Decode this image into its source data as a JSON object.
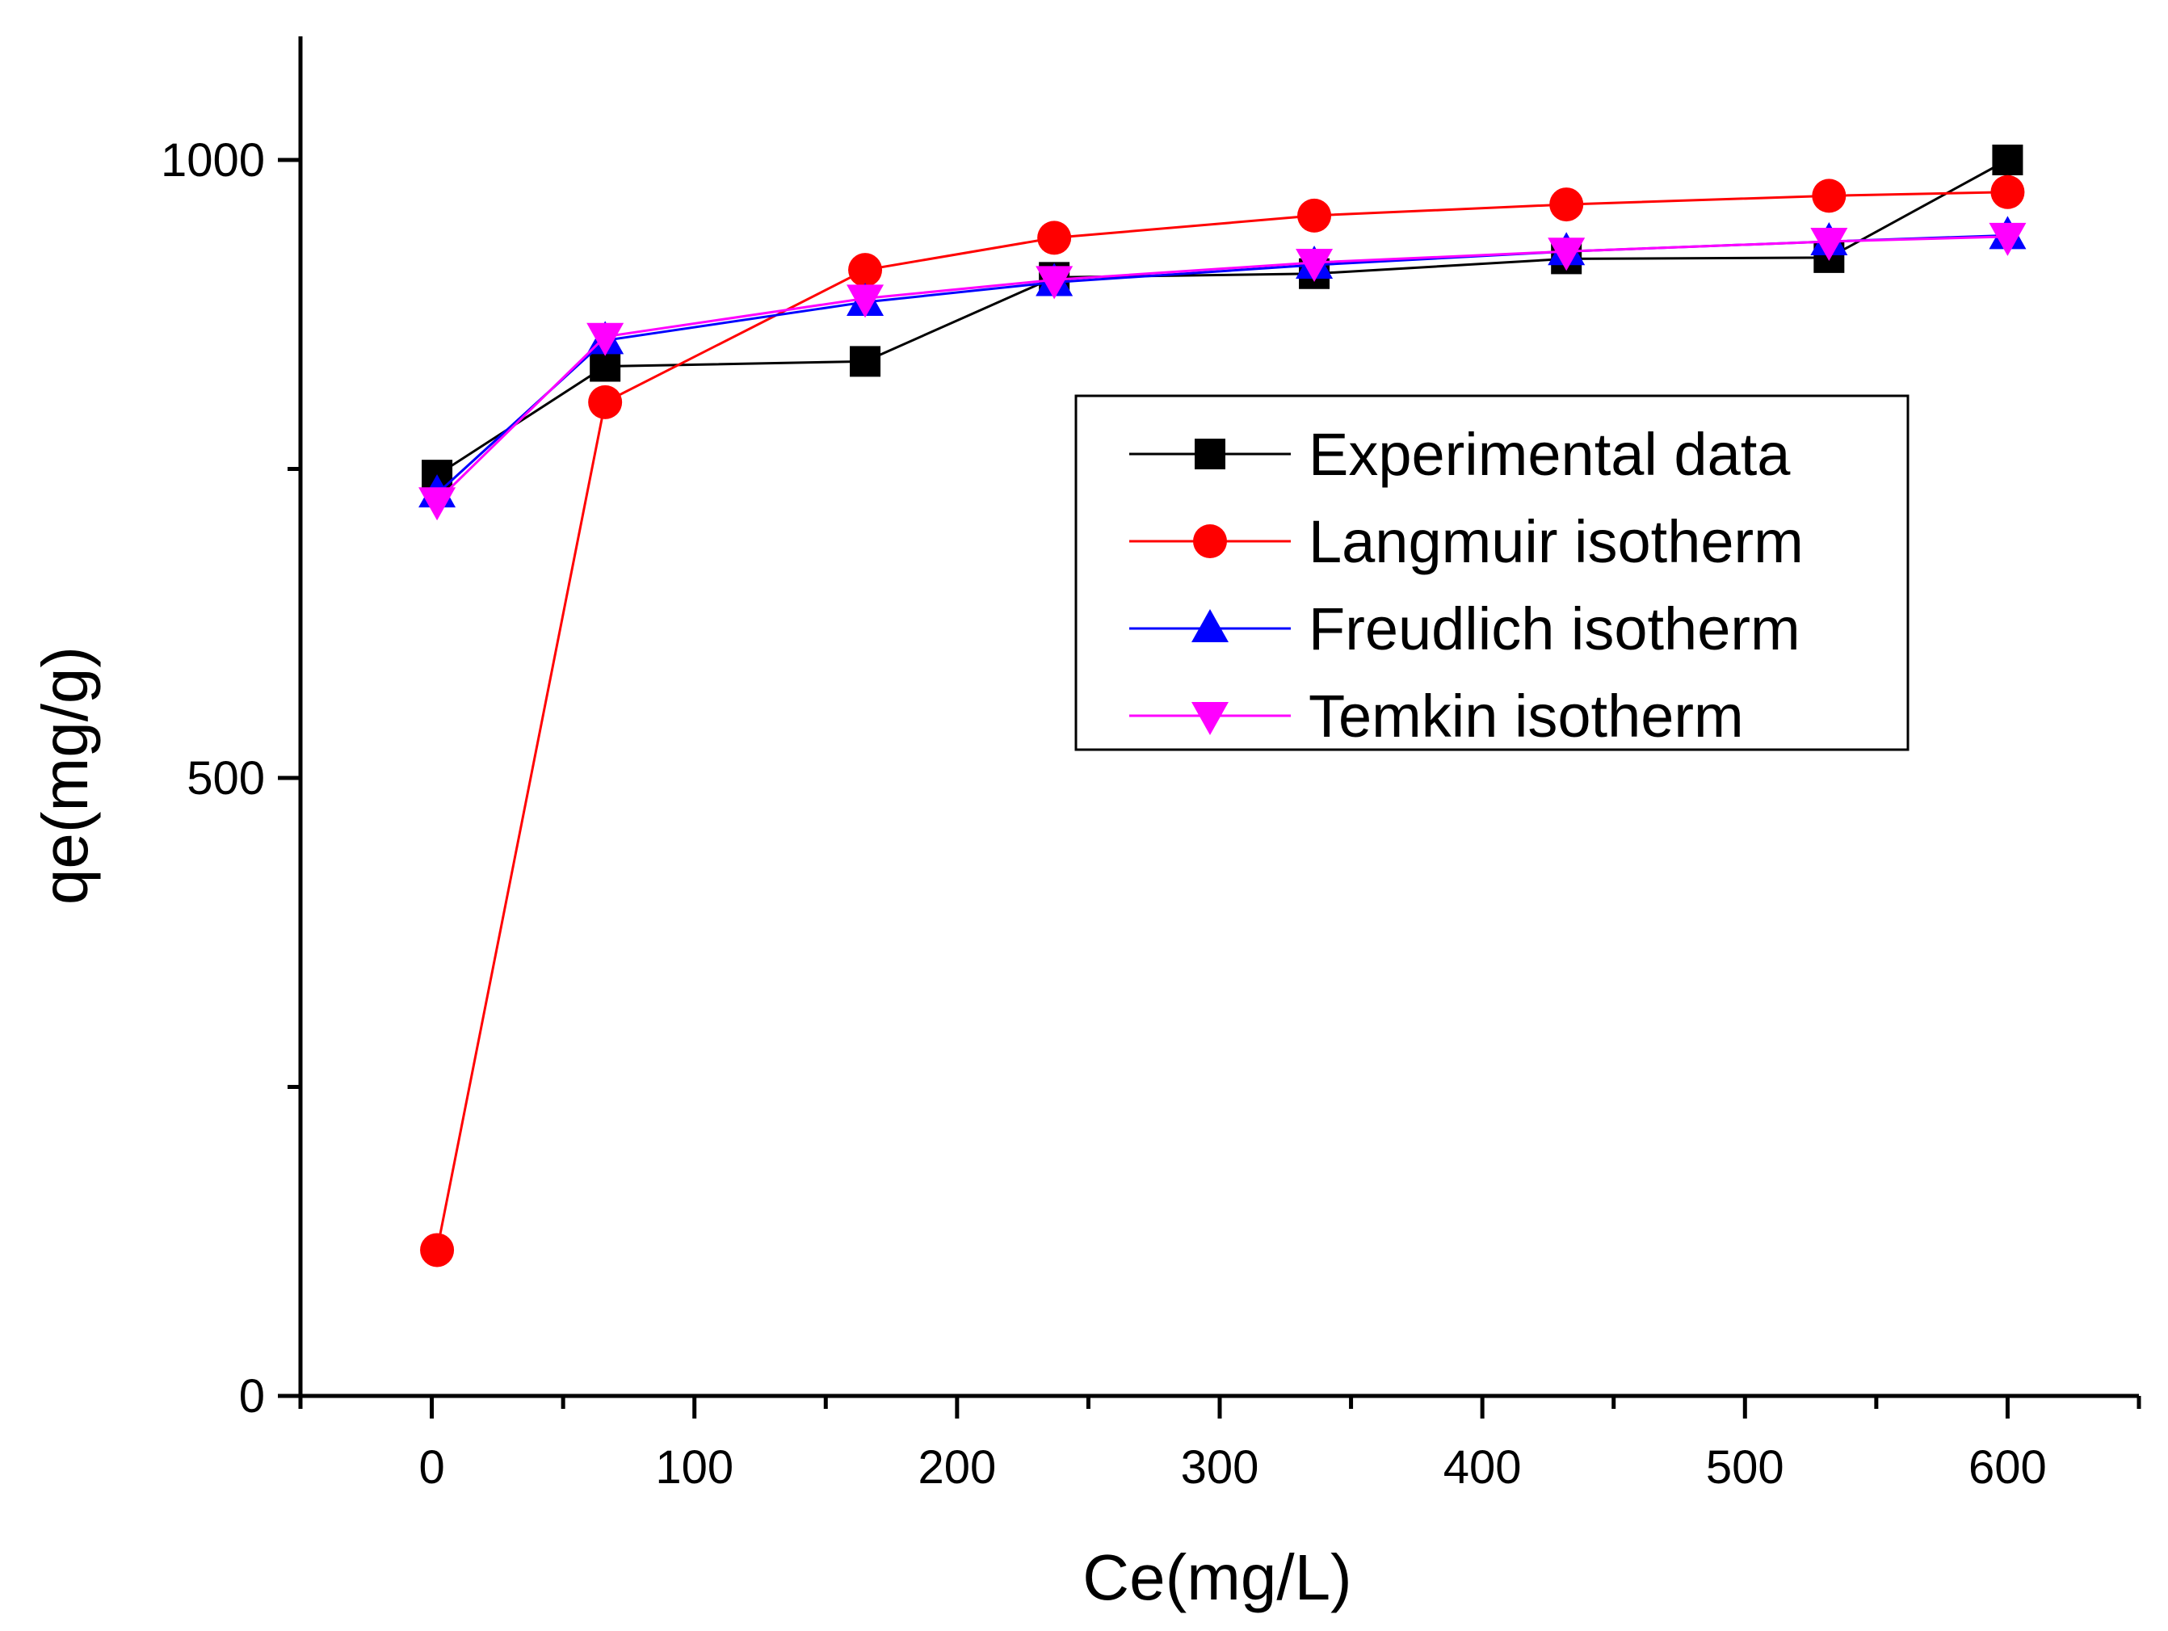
{
  "chart_data": {
    "type": "line",
    "title": "",
    "xlabel": "Ce(mg/L)",
    "ylabel": "qe(mg/g)",
    "xlim": [
      -50,
      650
    ],
    "ylim": [
      0,
      1100
    ],
    "x_ticks": [
      0,
      100,
      200,
      300,
      400,
      500,
      600
    ],
    "y_ticks": [
      0,
      500,
      1000
    ],
    "y_minor_ticks": [
      250,
      750
    ],
    "x_minor_ticks": [
      -50,
      50,
      150,
      250,
      350,
      450,
      550,
      650
    ],
    "legend_position": "center-right",
    "grid": false,
    "series": [
      {
        "name": "Experimental data",
        "color": "#000000",
        "marker": "square",
        "x": [
          2,
          66,
          165,
          237,
          336,
          432,
          532,
          600
        ],
        "y": [
          745,
          833,
          837,
          905,
          908,
          920,
          921,
          1000
        ]
      },
      {
        "name": "Langmuir isotherm",
        "color": "#ff0000",
        "marker": "circle",
        "x": [
          2,
          66,
          165,
          237,
          336,
          432,
          532,
          600
        ],
        "y": [
          118,
          804,
          911,
          937,
          955,
          964,
          971,
          974
        ]
      },
      {
        "name": "Freudlich isotherm",
        "color": "#0000ff",
        "marker": "triangle-up",
        "x": [
          2,
          66,
          165,
          237,
          336,
          432,
          532,
          600
        ],
        "y": [
          730,
          854,
          885,
          901,
          915,
          926,
          934,
          939
        ]
      },
      {
        "name": "Temkin isotherm",
        "color": "#ff00ff",
        "marker": "triangle-down",
        "x": [
          2,
          66,
          165,
          237,
          336,
          432,
          532,
          600
        ],
        "y": [
          724,
          857,
          888,
          903,
          917,
          926,
          934,
          938
        ]
      }
    ]
  }
}
